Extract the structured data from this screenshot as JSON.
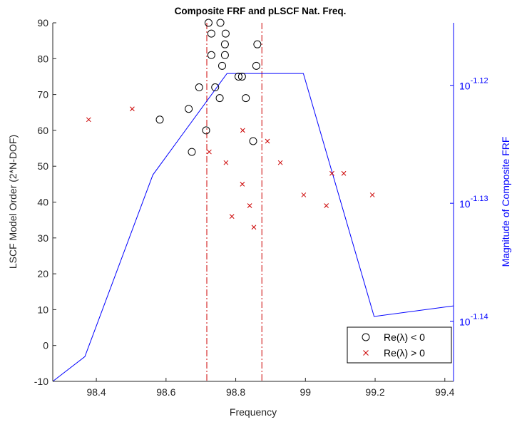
{
  "chart_data": {
    "type": "scatter",
    "title": "Composite FRF and pLSCF Nat. Freq.",
    "xlabel": "Frequency",
    "ylabel_left": "LSCF Model Order (2*N-DOF)",
    "ylabel_right": "Magnitude of Composite FRF",
    "xlim": [
      98.275,
      99.425
    ],
    "ylim_left": [
      -10,
      90
    ],
    "ylim_right_log10": [
      -1.1451,
      -1.1147
    ],
    "xticks": [
      98.4,
      98.6,
      98.8,
      99,
      99.2,
      99.4
    ],
    "xtick_labels": [
      "98.4",
      "98.6",
      "98.8",
      "99",
      "99.2",
      "99.4"
    ],
    "yticks_left": [
      -10,
      0,
      10,
      20,
      30,
      40,
      50,
      60,
      70,
      80,
      90
    ],
    "ytick_labels_left": [
      "-10",
      "0",
      "10",
      "20",
      "30",
      "40",
      "50",
      "60",
      "70",
      "80",
      "90"
    ],
    "yticks_right_log10": [
      -1.12,
      -1.13,
      -1.14
    ],
    "ytick_labels_right": [
      {
        "base": "10",
        "exp": "-1.12"
      },
      {
        "base": "10",
        "exp": "-1.13"
      },
      {
        "base": "10",
        "exp": "-1.14"
      }
    ],
    "vlines": [
      98.717,
      98.875
    ],
    "series": [
      {
        "name": "Re(λ) < 0",
        "marker": "circle",
        "color": "#000000",
        "points": [
          [
            98.722,
            90
          ],
          [
            98.756,
            90
          ],
          [
            98.73,
            87
          ],
          [
            98.771,
            87
          ],
          [
            98.769,
            84
          ],
          [
            98.862,
            84
          ],
          [
            98.73,
            81
          ],
          [
            98.769,
            81
          ],
          [
            98.761,
            78
          ],
          [
            98.859,
            78
          ],
          [
            98.808,
            75
          ],
          [
            98.818,
            75
          ],
          [
            98.695,
            72
          ],
          [
            98.741,
            72
          ],
          [
            98.754,
            69
          ],
          [
            98.829,
            69
          ],
          [
            98.665,
            66
          ],
          [
            98.582,
            63
          ],
          [
            98.715,
            60
          ],
          [
            98.85,
            57
          ],
          [
            98.674,
            54
          ]
        ]
      },
      {
        "name": "Re(λ) > 0",
        "marker": "x",
        "color": "#cc0000",
        "points": [
          [
            98.378,
            63
          ],
          [
            98.503,
            66
          ],
          [
            98.724,
            54
          ],
          [
            98.82,
            60
          ],
          [
            98.772,
            51
          ],
          [
            98.891,
            57
          ],
          [
            98.928,
            51
          ],
          [
            98.819,
            45
          ],
          [
            98.84,
            39
          ],
          [
            98.789,
            36
          ],
          [
            98.852,
            33
          ],
          [
            98.995,
            42
          ],
          [
            99.06,
            39
          ],
          [
            99.076,
            48
          ],
          [
            99.11,
            48
          ],
          [
            99.192,
            42
          ]
        ]
      },
      {
        "name": "",
        "type": "line",
        "color": "#0000ff",
        "axis": "right",
        "x": [
          98.275,
          98.367,
          98.562,
          98.775,
          98.994,
          99.197,
          99.425
        ],
        "y_log10": [
          -1.1451,
          -1.143,
          -1.1276,
          -1.119,
          -1.119,
          -1.1396,
          -1.1387
        ]
      }
    ],
    "legend": {
      "position": "bottom-right",
      "entries": [
        "Re(λ) < 0",
        "Re(λ) > 0"
      ]
    }
  }
}
